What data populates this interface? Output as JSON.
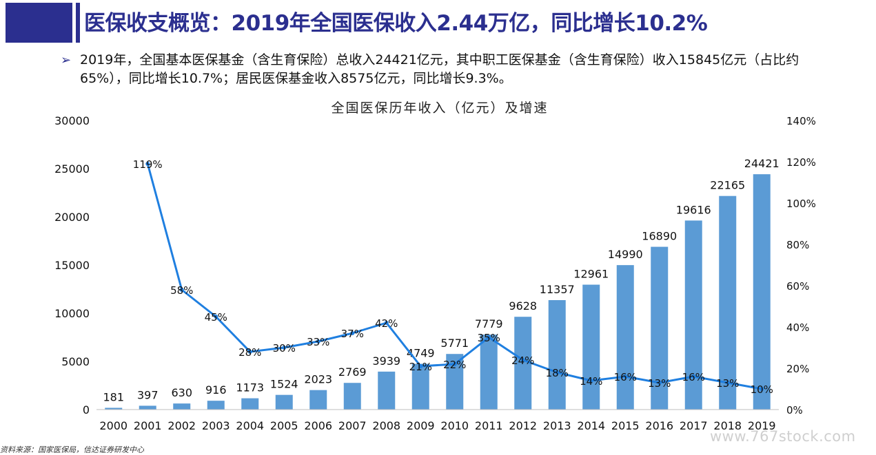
{
  "header": {
    "title": "医保收支概览：2019年全国医保收入2.44万亿，同比增长10.2%"
  },
  "summary": {
    "bullet_glyph": "➢",
    "text": "2019年，全国基本医保基金（含生育保险）总收入24421亿元，其中职工医保基金（含生育保险）收入15845亿元（占比约65%），同比增长10.7%；居民医保基金收入8575亿元，同比增长9.3%。"
  },
  "chart_data": {
    "type": "bar",
    "title": "全国医保历年收入（亿元）及增速",
    "categories": [
      "2000",
      "2001",
      "2002",
      "2003",
      "2004",
      "2005",
      "2006",
      "2007",
      "2008",
      "2009",
      "2010",
      "2011",
      "2012",
      "2013",
      "2014",
      "2015",
      "2016",
      "2017",
      "2018",
      "2019"
    ],
    "series": [
      {
        "type": "bar",
        "axis": "left",
        "color": "#5b9bd5",
        "values": [
          181,
          397,
          630,
          916,
          1173,
          1524,
          2023,
          2769,
          3939,
          4749,
          5771,
          7779,
          9628,
          11357,
          12961,
          14990,
          16890,
          19616,
          22165,
          24421
        ],
        "labels": [
          "181",
          "397",
          "630",
          "916",
          "1173",
          "1524",
          "2023",
          "2769",
          "3939",
          "4749",
          "5771",
          "7779",
          "9628",
          "11357",
          "12961",
          "14990",
          "16890",
          "19616",
          "22165",
          "24421"
        ]
      },
      {
        "type": "line",
        "axis": "right",
        "color": "#1f7fe0",
        "values": [
          null,
          119,
          58,
          45,
          28,
          30,
          33,
          37,
          42,
          21,
          22,
          35,
          24,
          18,
          14,
          16,
          13,
          16,
          13,
          10
        ],
        "labels": [
          "",
          "119%",
          "58%",
          "45%",
          "28%",
          "30%",
          "33%",
          "37%",
          "42%",
          "21%",
          "22%",
          "35%",
          "24%",
          "18%",
          "14%",
          "16%",
          "13%",
          "16%",
          "13%",
          "10%"
        ]
      }
    ],
    "ylim": [
      0,
      30000
    ],
    "y2lim": [
      0,
      140
    ],
    "yticks": [
      "0",
      "5000",
      "10000",
      "15000",
      "20000",
      "25000",
      "30000"
    ],
    "y2ticks": [
      "0%",
      "20%",
      "40%",
      "60%",
      "80%",
      "100%",
      "120%",
      "140%"
    ],
    "legend": "none",
    "grid": false
  },
  "footer": {
    "source": "资料来源：国家医保局，信达证券研发中心",
    "watermark": "www.767stock.com"
  }
}
